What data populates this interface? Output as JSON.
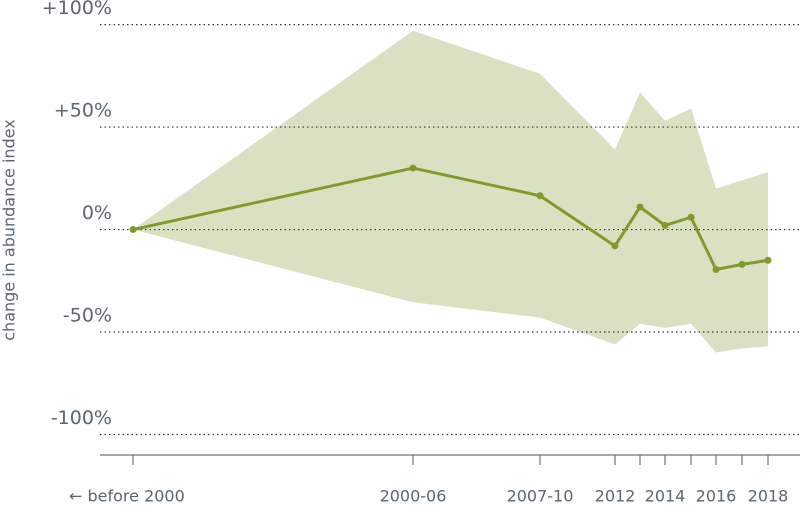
{
  "chart_data": {
    "type": "line",
    "y_label": "change in abundance index",
    "categories": [
      "← before 2000",
      "2000-06",
      "2007-10",
      "2012",
      null,
      "2014",
      null,
      "2016",
      null,
      "2018"
    ],
    "values": [
      0,
      30,
      16.5,
      -8,
      11,
      2,
      6,
      -19.5,
      -17,
      -15
    ],
    "color": "#7f9a2e",
    "band_upper": [
      0,
      97,
      76,
      39,
      67,
      53,
      59,
      20,
      24,
      28
    ],
    "band_lower": [
      0,
      -35.5,
      -43,
      -56,
      -46,
      -48,
      -46,
      -60,
      -58,
      -57
    ],
    "band_color": "#dae1c2",
    "ylim": [
      -110,
      112
    ],
    "yticks": [
      {
        "value": -100,
        "label": "-100%"
      },
      {
        "value": -50,
        "label": "-50%"
      },
      {
        "value": 0,
        "label": "0%"
      },
      {
        "value": 50,
        "label": "+50%"
      },
      {
        "value": 100,
        "label": "+100%"
      }
    ],
    "grid": true
  }
}
